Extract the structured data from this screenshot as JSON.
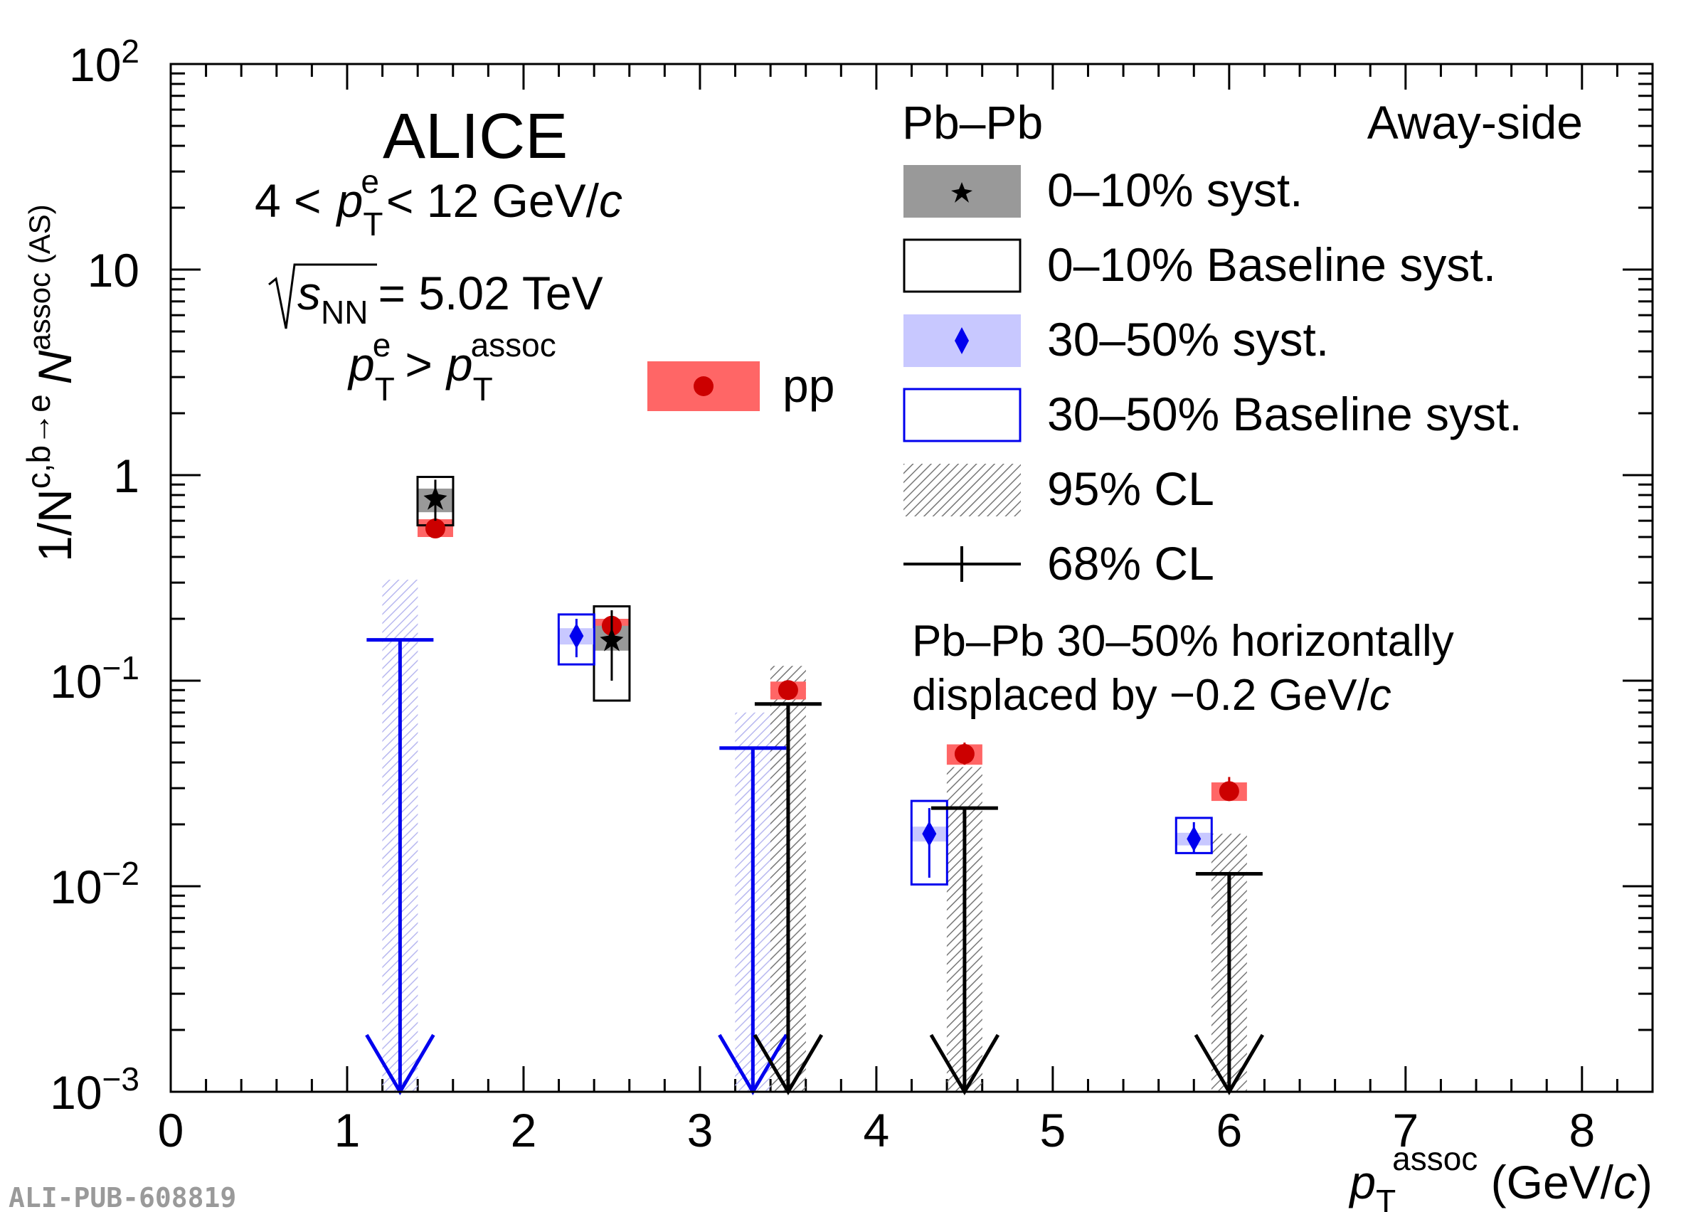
{
  "chart_data": {
    "type": "scatter",
    "yscale": "log",
    "xlim": [
      0,
      8.4
    ],
    "ylim": [
      0.001,
      100
    ],
    "x_ticks": [
      "0",
      "1",
      "2",
      "3",
      "4",
      "5",
      "6",
      "7",
      "8"
    ],
    "x_tick_values": [
      0,
      1,
      2,
      3,
      4,
      5,
      6,
      7,
      8
    ],
    "y_ticks": [
      {
        "value": 0.001,
        "base": "10",
        "exp": "−3"
      },
      {
        "value": 0.01,
        "base": "10",
        "exp": "−2"
      },
      {
        "value": 0.1,
        "base": "10",
        "exp": "−1"
      },
      {
        "value": 1,
        "base": "1",
        "exp": ""
      },
      {
        "value": 10,
        "base": "10",
        "exp": ""
      },
      {
        "value": 100,
        "base": "10",
        "exp": "2"
      }
    ],
    "xlabel": {
      "p": "p",
      "sub": "T",
      "sup": "assoc",
      "unit_open": " (GeV/",
      "unit_c": "c",
      "unit_close": ")"
    },
    "ylabel": {
      "prefix": "1/N",
      "sup1": "c,b→e",
      "n": "N",
      "sup2": "assoc (AS)"
    },
    "annotations": {
      "experiment": "ALICE",
      "pt_range": {
        "lo": "4 <",
        "p": "p",
        "sub": "T",
        "sup": "e",
        "hi": "< 12 GeV/",
        "c": "c"
      },
      "energy": {
        "s": "s",
        "sub": "NN",
        "value": "= 5.02 TeV"
      },
      "condition": {
        "p1": "p",
        "sub1": "T",
        "sup1": "e",
        "gt": ">",
        "p2": "p",
        "sub2": "T",
        "sup2": "assoc"
      },
      "legend_title": "Pb–Pb",
      "side": "Away-side",
      "note_line1": "Pb–Pb 30–50% horizontally",
      "note_line2": "displaced by −0.2 GeV/",
      "note_c": "c",
      "watermark": "ALI-PUB-608819"
    },
    "legend": [
      {
        "label": "0–10% syst.",
        "kind": "gray-box-star"
      },
      {
        "label": "0–10% Baseline syst.",
        "kind": "open-black-box"
      },
      {
        "label": "30–50% syst.",
        "kind": "blue-box-diamond"
      },
      {
        "label": "30–50% Baseline syst.",
        "kind": "open-blue-box"
      },
      {
        "label": "95% CL",
        "kind": "hatched-box"
      },
      {
        "label": "68% CL",
        "kind": "line-tick"
      },
      {
        "label": "pp",
        "kind": "red-box-circle"
      }
    ],
    "series": [
      {
        "name": "pp",
        "color": "#cc0000",
        "box_color": "#ff6666",
        "points": [
          {
            "x": 1.5,
            "y": 0.55,
            "syst": [
              0.5,
              0.61
            ],
            "stat": [
              0.52,
              0.58
            ]
          },
          {
            "x": 2.5,
            "y": 0.185,
            "syst": [
              0.17,
              0.2
            ],
            "stat": [
              0.17,
              0.2
            ]
          },
          {
            "x": 3.5,
            "y": 0.09,
            "syst": [
              0.081,
              0.099
            ],
            "stat": [
              0.083,
              0.097
            ]
          },
          {
            "x": 4.5,
            "y": 0.044,
            "syst": [
              0.039,
              0.049
            ],
            "stat": [
              0.039,
              0.05
            ]
          },
          {
            "x": 6.0,
            "y": 0.029,
            "syst": [
              0.026,
              0.032
            ],
            "stat": [
              0.026,
              0.034
            ]
          }
        ]
      },
      {
        "name": "0–10%",
        "color": "#000000",
        "box_color": "#999999",
        "points": [
          {
            "x": 1.5,
            "y": 0.78,
            "syst": [
              0.66,
              0.86
            ],
            "baseline": [
              0.57,
              0.98
            ],
            "stat": [
              0.6,
              0.95
            ]
          },
          {
            "x": 2.5,
            "y": 0.16,
            "syst": [
              0.14,
              0.185
            ],
            "baseline": [
              0.08,
              0.23
            ],
            "stat": [
              0.1,
              0.22
            ]
          }
        ],
        "upper_limits": [
          {
            "x": 3.5,
            "cl68": 0.077,
            "cl95": 0.118
          },
          {
            "x": 4.5,
            "cl68": 0.024,
            "cl95": 0.038
          },
          {
            "x": 6.0,
            "cl68": 0.0115,
            "cl95": 0.018
          }
        ]
      },
      {
        "name": "30–50%",
        "color": "#0000ee",
        "box_color": "#c8c8ff",
        "points": [
          {
            "x": 2.3,
            "y": 0.165,
            "syst": [
              0.15,
              0.18
            ],
            "baseline": [
              0.12,
              0.21
            ],
            "stat": [
              0.13,
              0.2
            ]
          },
          {
            "x": 4.3,
            "y": 0.018,
            "syst": [
              0.0165,
              0.0195
            ],
            "baseline": [
              0.0102,
              0.026
            ],
            "stat": [
              0.011,
              0.024
            ]
          },
          {
            "x": 5.8,
            "y": 0.017,
            "syst": [
              0.0158,
              0.0182
            ],
            "baseline": [
              0.0145,
              0.0215
            ],
            "stat": [
              0.0145,
              0.0205
            ]
          }
        ],
        "upper_limits": [
          {
            "x": 1.3,
            "cl68": 0.158,
            "cl95": 0.31
          },
          {
            "x": 3.3,
            "cl68": 0.047,
            "cl95": 0.07
          }
        ]
      }
    ]
  }
}
